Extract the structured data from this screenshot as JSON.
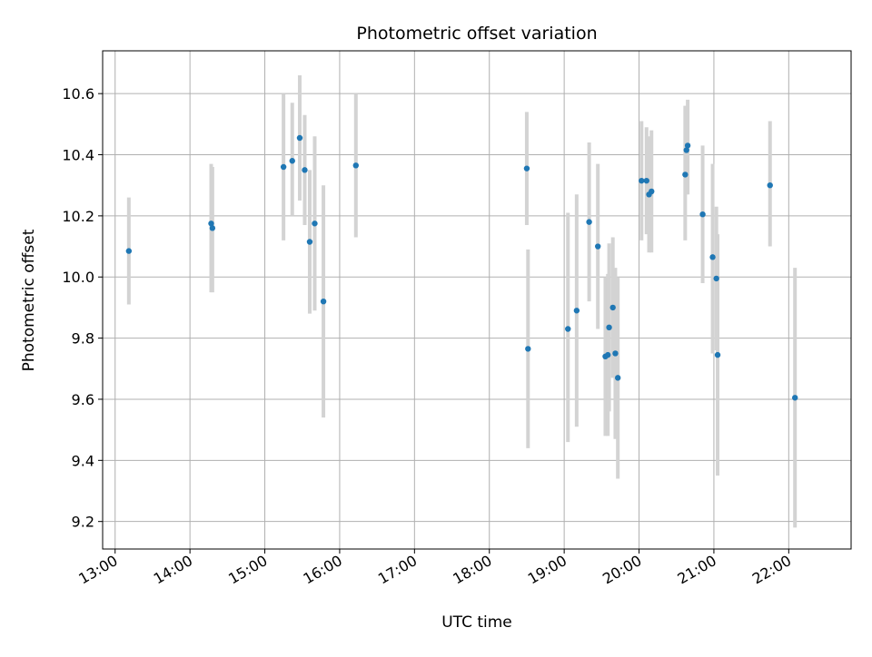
{
  "chart_data": {
    "type": "scatter",
    "title": "Photometric offset variation",
    "xlabel": "UTC time",
    "ylabel": "Photometric offset",
    "x_axis_type": "time",
    "xlim": [
      "12:50",
      "22:50"
    ],
    "ylim": [
      9.11,
      10.74
    ],
    "x_ticks": [
      "13:00",
      "14:00",
      "15:00",
      "16:00",
      "17:00",
      "18:00",
      "19:00",
      "20:00",
      "21:00",
      "22:00"
    ],
    "y_ticks": [
      "9.2",
      "9.4",
      "9.6",
      "9.8",
      "10.0",
      "10.2",
      "10.4",
      "10.6"
    ],
    "grid": true,
    "point_color": "#1f77b4",
    "errorbar_color": "#d3d3d3",
    "points": [
      {
        "t": "13:11",
        "y": 10.085,
        "lo": 9.91,
        "hi": 10.26
      },
      {
        "t": "14:17",
        "y": 10.175,
        "lo": 9.95,
        "hi": 10.37
      },
      {
        "t": "14:18",
        "y": 10.16,
        "lo": 9.95,
        "hi": 10.36
      },
      {
        "t": "15:15",
        "y": 10.36,
        "lo": 10.12,
        "hi": 10.6
      },
      {
        "t": "15:22",
        "y": 10.38,
        "lo": 10.2,
        "hi": 10.57
      },
      {
        "t": "15:28",
        "y": 10.455,
        "lo": 10.25,
        "hi": 10.66
      },
      {
        "t": "15:32",
        "y": 10.35,
        "lo": 10.17,
        "hi": 10.53
      },
      {
        "t": "15:36",
        "y": 10.115,
        "lo": 9.88,
        "hi": 10.35
      },
      {
        "t": "15:40",
        "y": 10.175,
        "lo": 9.89,
        "hi": 10.46
      },
      {
        "t": "15:47",
        "y": 9.92,
        "lo": 9.54,
        "hi": 10.3
      },
      {
        "t": "16:13",
        "y": 10.365,
        "lo": 10.13,
        "hi": 10.6
      },
      {
        "t": "18:30",
        "y": 10.355,
        "lo": 10.17,
        "hi": 10.54
      },
      {
        "t": "18:31",
        "y": 9.765,
        "lo": 9.44,
        "hi": 10.09
      },
      {
        "t": "19:03",
        "y": 9.83,
        "lo": 9.46,
        "hi": 10.21
      },
      {
        "t": "19:10",
        "y": 9.89,
        "lo": 9.51,
        "hi": 10.27
      },
      {
        "t": "19:20",
        "y": 10.18,
        "lo": 9.92,
        "hi": 10.44
      },
      {
        "t": "19:27",
        "y": 10.1,
        "lo": 9.83,
        "hi": 10.37
      },
      {
        "t": "19:33",
        "y": 9.74,
        "lo": 9.48,
        "hi": 10.0
      },
      {
        "t": "19:35",
        "y": 9.745,
        "lo": 9.48,
        "hi": 10.01
      },
      {
        "t": "19:36",
        "y": 9.835,
        "lo": 9.56,
        "hi": 10.11
      },
      {
        "t": "19:39",
        "y": 9.9,
        "lo": 9.67,
        "hi": 10.13
      },
      {
        "t": "19:41",
        "y": 9.75,
        "lo": 9.47,
        "hi": 10.03
      },
      {
        "t": "19:43",
        "y": 9.67,
        "lo": 9.34,
        "hi": 10.0
      },
      {
        "t": "20:02",
        "y": 10.315,
        "lo": 10.12,
        "hi": 10.51
      },
      {
        "t": "20:06",
        "y": 10.315,
        "lo": 10.14,
        "hi": 10.49
      },
      {
        "t": "20:08",
        "y": 10.27,
        "lo": 10.08,
        "hi": 10.46
      },
      {
        "t": "20:10",
        "y": 10.28,
        "lo": 10.08,
        "hi": 10.48
      },
      {
        "t": "20:37",
        "y": 10.335,
        "lo": 10.12,
        "hi": 10.56
      },
      {
        "t": "20:38",
        "y": 10.415,
        "lo": 10.27,
        "hi": 10.56
      },
      {
        "t": "20:39",
        "y": 10.43,
        "lo": 10.27,
        "hi": 10.58
      },
      {
        "t": "20:51",
        "y": 10.205,
        "lo": 9.98,
        "hi": 10.43
      },
      {
        "t": "20:59",
        "y": 10.065,
        "lo": 9.75,
        "hi": 10.37
      },
      {
        "t": "21:02",
        "y": 9.995,
        "lo": 9.76,
        "hi": 10.23
      },
      {
        "t": "21:03",
        "y": 9.745,
        "lo": 9.35,
        "hi": 10.14
      },
      {
        "t": "21:45",
        "y": 10.3,
        "lo": 10.1,
        "hi": 10.51
      },
      {
        "t": "22:05",
        "y": 9.605,
        "lo": 9.18,
        "hi": 10.03
      }
    ]
  }
}
